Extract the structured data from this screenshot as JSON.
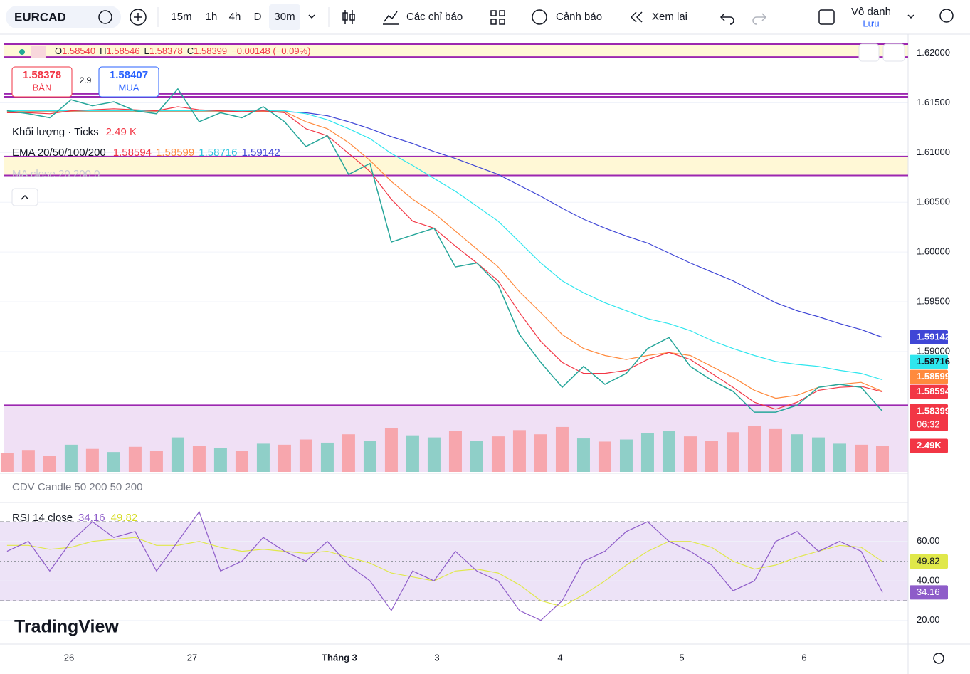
{
  "toolbar": {
    "symbol": "EURCAD",
    "intervals": [
      "15m",
      "1h",
      "4h",
      "D",
      "30m"
    ],
    "indicators": "Các chỉ báo",
    "alerts": "Cảnh báo",
    "replay": "Xem lại",
    "layout_name": "Vô danh",
    "save": "Lưu"
  },
  "legend": {
    "open_label": "O",
    "open": "1.58540",
    "high_label": "H",
    "high": "1.58546",
    "low_label": "L",
    "low": "1.58378",
    "close_label": "C",
    "close": "1.58399",
    "change": "−0.00148 (−0.09%)"
  },
  "trade": {
    "sell_price": "1.58378",
    "sell": "BÁN",
    "spread": "2.9",
    "buy_price": "1.58407",
    "buy": "MUA"
  },
  "indicators": {
    "volume_name": "Khối lượng · Ticks",
    "volume_value": "2.49 K",
    "volume_badge": "2.49K",
    "ema_name": "EMA 20/50/100/200",
    "ma_name": "MA close 20 200 0",
    "cdv_name": "CDV Candle 50 200 50 200",
    "rsi_name": "RSI 14 close"
  },
  "countdown": "06:32",
  "x_axis_labels": [
    "26",
    "27",
    "Tháng 3",
    "3",
    "4",
    "5",
    "6"
  ],
  "logo": "TradingView",
  "chart_data": [
    {
      "type": "line",
      "x": [
        0,
        1,
        2,
        3,
        4,
        5,
        6,
        7,
        8,
        9,
        10,
        11,
        12,
        13,
        14,
        15,
        16,
        17,
        18,
        19,
        20,
        21,
        22,
        23,
        24,
        25,
        26,
        27,
        28,
        29,
        30,
        31,
        32,
        33,
        34,
        35,
        36,
        37,
        38,
        39,
        40,
        41
      ],
      "xlim": [
        -0.13,
        42.2
      ],
      "ylim": [
        1.5779,
        1.6219
      ],
      "yticks": [
        {
          "value": 1.59,
          "label": "1.59000"
        },
        {
          "value": 1.595,
          "label": "1.59500"
        },
        {
          "value": 1.6,
          "label": "1.60000"
        },
        {
          "value": 1.605,
          "label": "1.60500"
        },
        {
          "value": 1.61,
          "label": "1.61000"
        },
        {
          "value": 1.615,
          "label": "1.61500"
        },
        {
          "value": 1.62,
          "label": "1.62000"
        }
      ],
      "levels": [
        1.6209,
        1.6196,
        1.6159,
        1.6156,
        1.6096,
        1.6077,
        1.5846
      ],
      "level_color": "#9c27b0",
      "zones": [
        [
          1.6209,
          1.6196
        ],
        [
          1.6096,
          1.6077
        ]
      ],
      "zone_color": "#fff8d6",
      "series": [
        {
          "color": "#26a69a",
          "values": [
            1.6142,
            1.6139,
            1.6135,
            1.6153,
            1.6147,
            1.6151,
            1.6142,
            1.6139,
            1.6164,
            1.6131,
            1.614,
            1.6135,
            1.6146,
            1.6131,
            1.6106,
            1.6117,
            1.6078,
            1.6089,
            1.601,
            1.6017,
            1.6024,
            1.5985,
            1.5989,
            1.5967,
            1.5917,
            1.5889,
            1.5864,
            1.5885,
            1.5867,
            1.5878,
            1.5903,
            1.5914,
            1.5885,
            1.5871,
            1.586,
            1.5839,
            1.5839,
            1.5846,
            1.5864,
            1.5867,
            1.5864,
            1.58399
          ]
        },
        {
          "color": "#f23645",
          "values": [
            1.614,
            1.614,
            1.6139,
            1.6142,
            1.6143,
            1.6144,
            1.6143,
            1.6142,
            1.6146,
            1.6143,
            1.6142,
            1.6141,
            1.6142,
            1.614,
            1.6124,
            1.6117,
            1.6099,
            1.6081,
            1.6053,
            1.6031,
            1.6024,
            1.6006,
            1.5989,
            1.5971,
            1.5939,
            1.591,
            1.5889,
            1.5878,
            1.5878,
            1.5881,
            1.5892,
            1.5899,
            1.5892,
            1.5878,
            1.5864,
            1.5849,
            1.5842,
            1.5849,
            1.5861,
            1.5864,
            1.5865,
            1.58594
          ]
        },
        {
          "color": "#ff8a3d",
          "values": [
            1.6141,
            1.6141,
            1.6141,
            1.6141,
            1.6141,
            1.6141,
            1.6141,
            1.6141,
            1.6141,
            1.6141,
            1.6141,
            1.6141,
            1.6141,
            1.6141,
            1.6131,
            1.6124,
            1.611,
            1.6092,
            1.6071,
            1.6053,
            1.6039,
            1.6021,
            1.6003,
            1.5985,
            1.596,
            1.5939,
            1.5917,
            1.5903,
            1.5896,
            1.5892,
            1.5896,
            1.5899,
            1.5896,
            1.5885,
            1.5874,
            1.5861,
            1.5853,
            1.5856,
            1.5864,
            1.5867,
            1.5869,
            1.58599
          ]
        },
        {
          "color": "#2ee6ee",
          "values": [
            1.6142,
            1.6142,
            1.6142,
            1.6142,
            1.6142,
            1.6142,
            1.6142,
            1.6142,
            1.6142,
            1.6142,
            1.6142,
            1.6142,
            1.6142,
            1.6142,
            1.6139,
            1.6133,
            1.6124,
            1.6114,
            1.6099,
            1.6087,
            1.6074,
            1.6061,
            1.6046,
            1.6031,
            1.601,
            1.5989,
            1.5971,
            1.5959,
            1.5949,
            1.5941,
            1.5933,
            1.5928,
            1.5921,
            1.5911,
            1.5903,
            1.5896,
            1.589,
            1.5887,
            1.5885,
            1.5881,
            1.5878,
            1.58716
          ]
        },
        {
          "color": "#3f46d6",
          "values": [
            1.6142,
            1.6142,
            1.6142,
            1.6142,
            1.6142,
            1.6142,
            1.6142,
            1.6142,
            1.6142,
            1.6142,
            1.6142,
            1.6142,
            1.6142,
            1.6141,
            1.614,
            1.6137,
            1.6131,
            1.6124,
            1.6116,
            1.6109,
            1.6101,
            1.6094,
            1.6086,
            1.6078,
            1.6067,
            1.6056,
            1.6044,
            1.6033,
            1.6024,
            1.6016,
            1.6009,
            1.5999,
            1.5989,
            1.598,
            1.5971,
            1.596,
            1.5949,
            1.5941,
            1.5935,
            1.5928,
            1.5922,
            1.59142
          ]
        }
      ]
    },
    {
      "type": "bar",
      "ylim": [
        0,
        6000
      ],
      "colors": [
        "#f7a6ad",
        "#8fcfc8"
      ],
      "band_color": "#f0e0f5",
      "values": [
        1800,
        2100,
        1500,
        2600,
        2200,
        1900,
        2400,
        2000,
        3300,
        2500,
        2300,
        2000,
        2700,
        2600,
        3100,
        2800,
        3600,
        3000,
        4200,
        3500,
        3300,
        3900,
        3000,
        3400,
        4000,
        3600,
        4300,
        3200,
        2900,
        3100,
        3700,
        3900,
        3400,
        3000,
        3800,
        4400,
        4100,
        3600,
        3300,
        2700,
        2600,
        2490
      ]
    },
    {
      "type": "line",
      "ylim": [
        8,
        79
      ],
      "yticks": [
        {
          "value": 20,
          "label": "20.00"
        },
        {
          "value": 40,
          "label": "40.00"
        },
        {
          "value": 60,
          "label": "60.00"
        }
      ],
      "bands": [
        30,
        70
      ],
      "middle": 50,
      "band_color": "#ede3f7",
      "series": [
        {
          "color": "#8e5cc9",
          "values": [
            55,
            60,
            45,
            60,
            70,
            62,
            65,
            45,
            60,
            75,
            45,
            50,
            62,
            55,
            50,
            60,
            48,
            40,
            25,
            45,
            40,
            55,
            45,
            40,
            25,
            20,
            30,
            50,
            55,
            65,
            70,
            60,
            55,
            48,
            35,
            40,
            60,
            65,
            55,
            60,
            55,
            34.16
          ]
        },
        {
          "color": "#e0e84a",
          "values": [
            58,
            58,
            56,
            57,
            60,
            61,
            62,
            58,
            58,
            60,
            57,
            55,
            56,
            55,
            54,
            55,
            52,
            49,
            44,
            42,
            40,
            45,
            46,
            44,
            38,
            30,
            27,
            33,
            40,
            48,
            55,
            60,
            60,
            57,
            50,
            46,
            48,
            52,
            55,
            58,
            57,
            49.82
          ]
        }
      ]
    }
  ]
}
